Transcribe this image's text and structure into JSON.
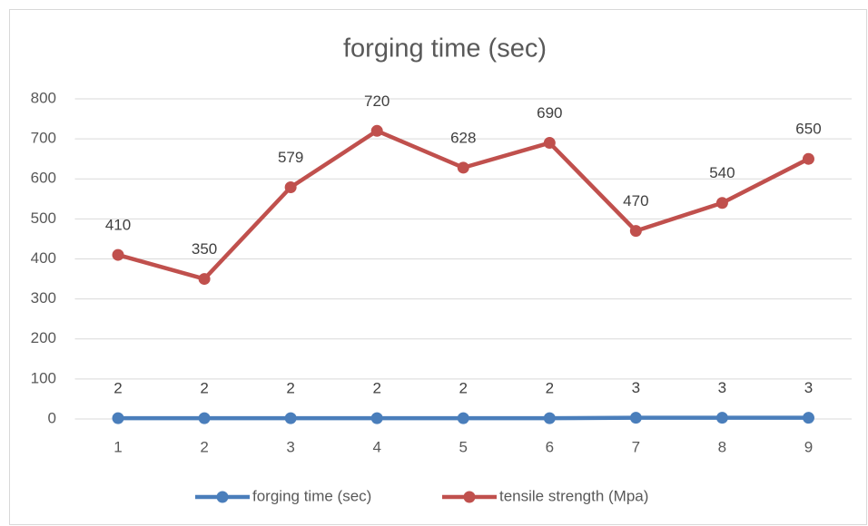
{
  "chart_data": {
    "type": "line",
    "title": "forging time (sec)",
    "categories": [
      "1",
      "2",
      "3",
      "4",
      "5",
      "6",
      "7",
      "8",
      "9"
    ],
    "series": [
      {
        "name": "forging time (sec)",
        "color": "#4a7ebb",
        "values": [
          2,
          2,
          2,
          2,
          2,
          2,
          3,
          3,
          3
        ]
      },
      {
        "name": "tensile strength (Mpa)",
        "color": "#c0504d",
        "values": [
          410,
          350,
          579,
          720,
          628,
          690,
          470,
          540,
          650
        ]
      }
    ],
    "ylim": [
      0,
      800
    ],
    "yticks": [
      0,
      100,
      200,
      300,
      400,
      500,
      600,
      700,
      800
    ],
    "grid": true,
    "legend": "bottom"
  }
}
